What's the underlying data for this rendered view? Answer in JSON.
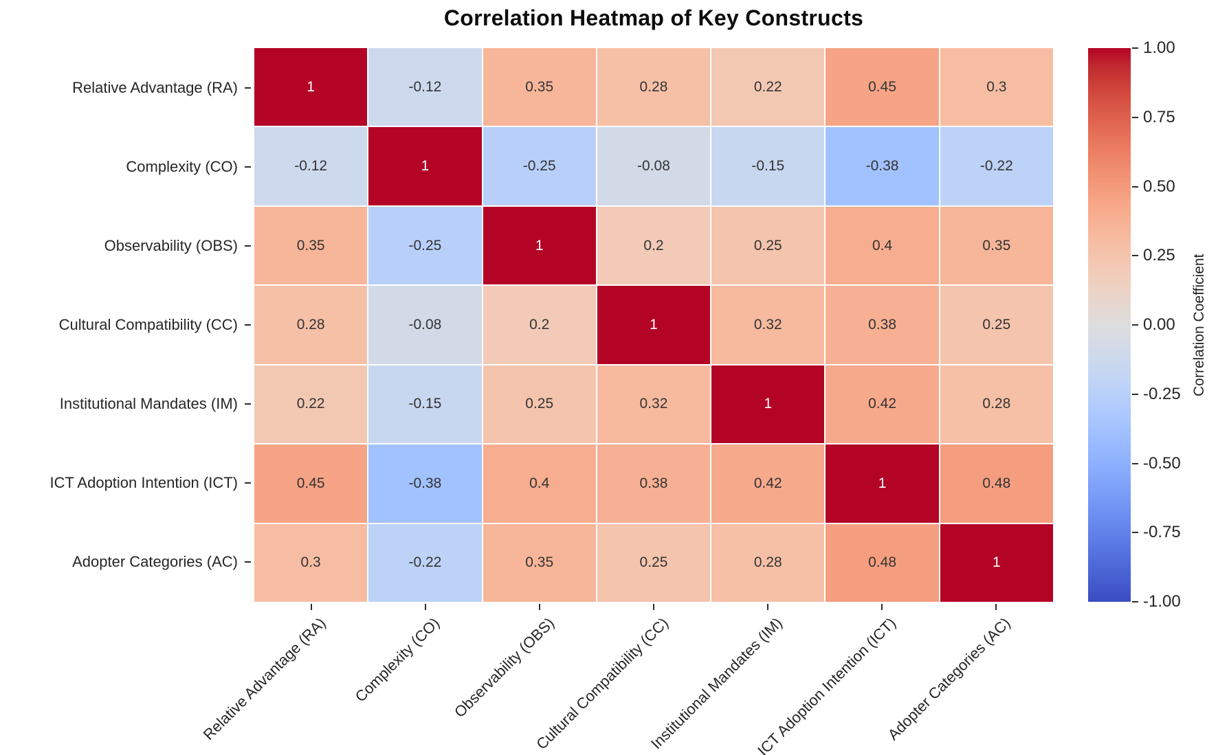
{
  "chart_data": {
    "type": "heatmap",
    "title": "Correlation Heatmap of Key Constructs",
    "categories": [
      "Relative Advantage (RA)",
      "Complexity (CO)",
      "Observability (OBS)",
      "Cultural Compatibility (CC)",
      "Institutional Mandates (IM)",
      "ICT Adoption Intention (ICT)",
      "Adopter Categories (AC)"
    ],
    "matrix": [
      [
        1,
        -0.12,
        0.35,
        0.28,
        0.22,
        0.45,
        0.3
      ],
      [
        -0.12,
        1,
        -0.25,
        -0.08,
        -0.15,
        -0.38,
        -0.22
      ],
      [
        0.35,
        -0.25,
        1,
        0.2,
        0.25,
        0.4,
        0.35
      ],
      [
        0.28,
        -0.08,
        0.2,
        1,
        0.32,
        0.38,
        0.25
      ],
      [
        0.22,
        -0.15,
        0.25,
        0.32,
        1,
        0.42,
        0.28
      ],
      [
        0.45,
        -0.38,
        0.4,
        0.38,
        0.42,
        1,
        0.48
      ],
      [
        0.3,
        -0.22,
        0.35,
        0.25,
        0.28,
        0.48,
        1
      ]
    ],
    "colorbar": {
      "label": "Correlation Coefficient",
      "min": -1,
      "max": 1,
      "ticks": [
        "1.00",
        "0.75",
        "0.50",
        "0.25",
        "0.00",
        "-0.25",
        "-0.50",
        "-0.75",
        "-1.00"
      ]
    },
    "colormap": {
      "name": "coolwarm",
      "anchors": [
        "#3b4cc0",
        "#445acc",
        "#4d68d7",
        "#5775e1",
        "#6282ea",
        "#6c8ef1",
        "#779af7",
        "#82a5fb",
        "#8db0fe",
        "#98b9ff",
        "#a3c2ff",
        "#aec9fd",
        "#b8d0f9",
        "#c2d5f4",
        "#ccd9ee",
        "#d5dbe6",
        "#dddddd",
        "#e5d8d1",
        "#ecd3c5",
        "#f1ccb9",
        "#f5c4ad",
        "#f7bba0",
        "#f7b194",
        "#f7a687",
        "#f49a7b",
        "#f18d6f",
        "#ec7f63",
        "#e57058",
        "#de604d",
        "#d55042",
        "#cb3e38",
        "#c0282f",
        "#b40426"
      ]
    },
    "legend_position": "right-colorbar",
    "grid": "white-cell-separators"
  },
  "style": {
    "background": "#ffffff",
    "title_color": "#0d0d0d",
    "axis_label_color": "#262626",
    "tick_color": "#2b2b2b",
    "annotation_color": "#333333",
    "annotation_color_on_diagonal": "#ffffff",
    "grid_line_color": "#ffffff",
    "diagonal_color": "#b40426"
  }
}
